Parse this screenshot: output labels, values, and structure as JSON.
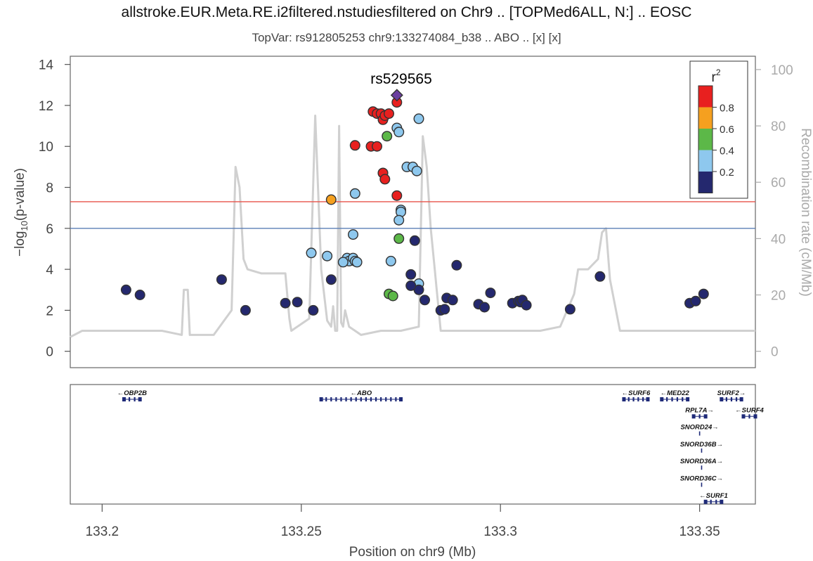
{
  "title": "allstroke.EUR.Meta.RE.i2filtered.nstudiesfiltered on Chr9 .. [TOPMed6ALL, N:] .. EOSC",
  "subtitle": "TopVar: rs912805253 chr9:133274084_b38 .. ABO .. [x] [x]",
  "chart_data": {
    "type": "scatter",
    "title": "allstroke.EUR.Meta.RE.i2filtered.nstudiesfiltered on Chr9 .. [TOPMed6ALL, N:] .. EOSC",
    "subtitle": "TopVar: rs912805253 chr9:133274084_b38 .. ABO .. [x] [x]",
    "xlabel": "Position on chr9 (Mb)",
    "ylabel": "−log₁₀(p-value)",
    "y2label": "Recombination rate (cM/Mb)",
    "xlim": [
      133.192,
      133.364
    ],
    "ylim": [
      -0.8,
      14.4
    ],
    "y2lim": [
      0,
      100
    ],
    "x_ticks": [
      "133.2",
      "133.25",
      "133.3",
      "133.35"
    ],
    "x_tick_values": [
      133.2,
      133.25,
      133.3,
      133.35
    ],
    "y_ticks": [
      0,
      2,
      4,
      6,
      8,
      10,
      12,
      14
    ],
    "y2_ticks": [
      0,
      20,
      40,
      60,
      80,
      100
    ],
    "threshold_lines": [
      {
        "y": 7.3,
        "color": "#e8534a"
      },
      {
        "y": 6.0,
        "color": "#5b7fb6"
      }
    ],
    "lead_label": "rs529565",
    "lead_snp": {
      "x": 133.274,
      "y": 12.5,
      "color": "#6b3fa0"
    },
    "legend": {
      "title": "r",
      "title_sup": "2",
      "placement": "top-right",
      "ticks": [
        "0.8",
        "0.6",
        "0.4",
        "0.2"
      ],
      "colors": [
        "#e8201f",
        "#f5a01f",
        "#5cb848",
        "#8ec8ee",
        "#24286e"
      ]
    },
    "color_bins": {
      "red": "#e8201f",
      "orange": "#f5a01f",
      "green": "#5cb848",
      "lightblue": "#8ec8ee",
      "navy": "#24286e"
    },
    "series": [
      {
        "color_key": "red",
        "x": [
          133.268,
          133.269,
          133.27,
          133.2705,
          133.271,
          133.272,
          133.2635,
          133.2675,
          133.269,
          133.2705,
          133.2705,
          133.271,
          133.274,
          133.274
        ],
        "y": [
          11.7,
          11.6,
          11.6,
          11.3,
          11.5,
          11.6,
          10.05,
          10.0,
          10.0,
          8.7,
          8.7,
          8.4,
          7.6,
          12.15
        ]
      },
      {
        "color_key": "orange",
        "x": [
          133.2575
        ],
        "y": [
          7.4
        ]
      },
      {
        "color_key": "green",
        "x": [
          133.2715,
          133.2745,
          133.272,
          133.273
        ],
        "y": [
          10.5,
          5.5,
          2.8,
          2.7
        ]
      },
      {
        "color_key": "lightblue",
        "x": [
          133.274,
          133.2745,
          133.2795,
          133.2765,
          133.278,
          133.279,
          133.2635,
          133.275,
          133.275,
          133.2745,
          133.263,
          133.2525,
          133.2565,
          133.2615,
          133.262,
          133.263,
          133.2635,
          133.264,
          133.2725,
          133.2795,
          133.2605
        ],
        "y": [
          10.9,
          10.7,
          11.35,
          9.0,
          9.0,
          8.8,
          7.7,
          6.9,
          6.8,
          6.4,
          5.7,
          4.8,
          4.65,
          4.55,
          4.4,
          4.55,
          4.4,
          4.35,
          4.4,
          3.3,
          4.35
        ]
      },
      {
        "color_key": "navy",
        "x": [
          133.2785,
          133.2775,
          133.2795,
          133.2775,
          133.289,
          133.2575,
          133.206,
          133.2095,
          133.23,
          133.236,
          133.246,
          133.249,
          133.253,
          133.281,
          133.285,
          133.2865,
          133.286,
          133.288,
          133.2945,
          133.296,
          133.2975,
          133.303,
          133.3045,
          133.305,
          133.3055,
          133.3065,
          133.3175,
          133.325,
          133.3475,
          133.349,
          133.351
        ],
        "y": [
          5.4,
          3.75,
          3.0,
          3.2,
          4.2,
          3.5,
          3.0,
          2.75,
          3.5,
          2.0,
          2.35,
          2.4,
          2.0,
          2.5,
          2.0,
          2.6,
          2.05,
          2.5,
          2.3,
          2.15,
          2.85,
          2.35,
          2.45,
          2.4,
          2.5,
          2.25,
          2.05,
          3.65,
          2.35,
          2.45,
          2.8
        ]
      }
    ],
    "recombination": {
      "color": "#d0d0d0",
      "x": [
        133.192,
        133.195,
        133.2,
        133.215,
        133.22,
        133.2205,
        133.2215,
        133.222,
        133.228,
        133.2325,
        133.2335,
        133.2345,
        133.2355,
        133.2365,
        133.24,
        133.246,
        133.247,
        133.2475,
        133.252,
        133.2535,
        133.255,
        133.2565,
        133.2575,
        133.258,
        133.2585,
        133.259,
        133.2595,
        133.26,
        133.2605,
        133.261,
        133.262,
        133.2635,
        133.265,
        133.27,
        133.275,
        133.2795,
        133.2805,
        133.2815,
        133.2825,
        133.2835,
        133.284,
        133.285,
        133.29,
        133.3,
        133.31,
        133.315,
        133.3185,
        133.3195,
        133.322,
        133.3245,
        133.3255,
        133.3265,
        133.3275,
        133.33,
        133.34,
        133.35,
        133.364
      ],
      "y": [
        0.7,
        1.0,
        1.0,
        1.0,
        0.8,
        3.0,
        3.0,
        0.8,
        0.8,
        2.0,
        9.0,
        8.0,
        4.5,
        4.0,
        3.8,
        3.8,
        1.6,
        1.0,
        1.6,
        11.5,
        4.0,
        1.5,
        1.2,
        2.2,
        1.0,
        1.0,
        11.0,
        1.4,
        1.2,
        2.0,
        1.2,
        1.0,
        0.8,
        1.0,
        1.0,
        1.2,
        10.5,
        9.0,
        6.0,
        4.0,
        3.0,
        1.0,
        1.0,
        1.0,
        1.0,
        1.2,
        2.8,
        4.0,
        4.0,
        4.5,
        5.8,
        6.0,
        3.5,
        1.0,
        1.0,
        1.0,
        1.0
      ]
    }
  },
  "genes": [
    {
      "name": "OBP2B",
      "dir": "left",
      "start": 133.2055,
      "end": 133.2095,
      "row": 0
    },
    {
      "name": "ABO",
      "dir": "left",
      "start": 133.255,
      "end": 133.275,
      "row": 0
    },
    {
      "name": "SURF6",
      "dir": "left",
      "start": 133.331,
      "end": 133.337,
      "row": 0
    },
    {
      "name": "MED22",
      "dir": "left",
      "start": 133.3405,
      "end": 133.347,
      "row": 0
    },
    {
      "name": "SURF2",
      "dir": "right",
      "start": 133.3555,
      "end": 133.3605,
      "row": 0
    },
    {
      "name": "RPL7A",
      "dir": "right",
      "start": 133.3485,
      "end": 133.3515,
      "row": 1
    },
    {
      "name": "SURF4",
      "dir": "left",
      "start": 133.361,
      "end": 133.364,
      "row": 1
    },
    {
      "name": "SNORD24",
      "dir": "right",
      "start": 133.35,
      "end": 133.35,
      "row": 2
    },
    {
      "name": "SNORD36B",
      "dir": "right",
      "start": 133.3505,
      "end": 133.3505,
      "row": 3
    },
    {
      "name": "SNORD36A",
      "dir": "right",
      "start": 133.3505,
      "end": 133.3505,
      "row": 4
    },
    {
      "name": "SNORD36C",
      "dir": "right",
      "start": 133.3505,
      "end": 133.3505,
      "row": 5
    },
    {
      "name": "SURF1",
      "dir": "left",
      "start": 133.3515,
      "end": 133.3555,
      "row": 6
    }
  ]
}
